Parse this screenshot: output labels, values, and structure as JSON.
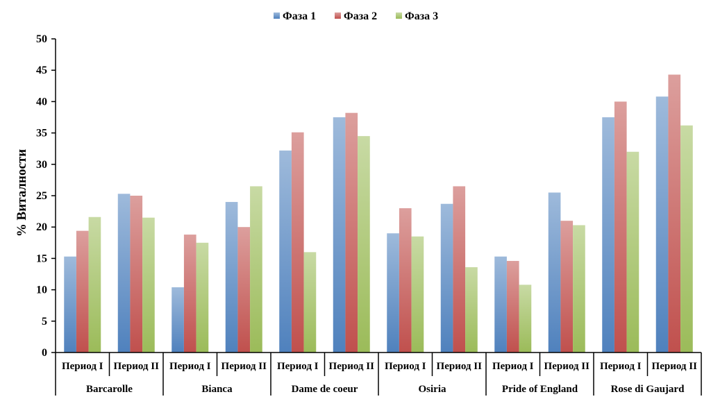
{
  "chart_data": {
    "type": "bar",
    "title": "",
    "ylabel": "% Виталности",
    "ylim": [
      0,
      50
    ],
    "yticks": [
      0,
      5,
      10,
      15,
      20,
      25,
      30,
      35,
      40,
      45,
      50
    ],
    "grid": false,
    "legend_position": "top",
    "groups": [
      {
        "name": "Barcarolle",
        "periods": [
          "Период I",
          "Период II"
        ]
      },
      {
        "name": "Bianca",
        "periods": [
          "Период I",
          "Период II"
        ]
      },
      {
        "name": "Dame de coeur",
        "periods": [
          "Период I",
          "Период II"
        ]
      },
      {
        "name": "Osiria",
        "periods": [
          "Период I",
          "Период II"
        ]
      },
      {
        "name": "Pride of England",
        "periods": [
          "Период I",
          "Период II"
        ]
      },
      {
        "name": "Rose di Gaujard",
        "periods": [
          "Период I",
          "Период II"
        ]
      }
    ],
    "series": [
      {
        "name": "Фаза 1",
        "color": "#4f81bd",
        "values": [
          15.3,
          25.3,
          10.4,
          24.0,
          32.2,
          37.5,
          19.0,
          23.7,
          15.3,
          25.5,
          37.5,
          40.8
        ]
      },
      {
        "name": "Фаза 2",
        "color": "#c0504d",
        "values": [
          19.4,
          25.0,
          18.8,
          20.0,
          35.1,
          38.2,
          23.0,
          26.5,
          14.6,
          21.0,
          40.0,
          44.3
        ]
      },
      {
        "name": "Фаза 3",
        "color": "#9bbb59",
        "values": [
          21.6,
          21.5,
          17.5,
          26.5,
          16.0,
          34.5,
          18.5,
          13.6,
          10.8,
          20.3,
          32.0,
          36.2
        ]
      }
    ]
  }
}
